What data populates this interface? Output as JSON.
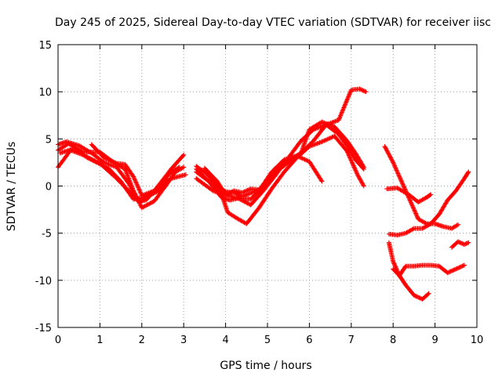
{
  "chart_data": {
    "type": "scatter",
    "title": "Day 245 of 2025, Sidereal Day-to-day VTEC variation (SDTVAR) for receiver iisc",
    "xlabel": "GPS time / hours",
    "ylabel": "SDTVAR / TECUs",
    "xlim": [
      0,
      10
    ],
    "ylim": [
      -15,
      15
    ],
    "xticks": [
      "0",
      "1",
      "2",
      "3",
      "4",
      "5",
      "6",
      "7",
      "8",
      "9",
      "10"
    ],
    "yticks": [
      "15",
      "10",
      "5",
      "0",
      "-5",
      "-10",
      "-15"
    ],
    "grid": true,
    "marker": "+",
    "colors": {
      "series": "#ff0000",
      "grid": "#a0a0a0",
      "frame": "#000000"
    },
    "series": [
      {
        "points": [
          [
            0,
            2
          ],
          [
            0.3,
            3.8
          ],
          [
            0.6,
            3.3
          ],
          [
            1.0,
            2.4
          ],
          [
            1.4,
            0.8
          ],
          [
            1.75,
            -0.8
          ],
          [
            2.0,
            -1.6
          ],
          [
            2.3,
            -0.5
          ],
          [
            2.7,
            1.8
          ],
          [
            3.0,
            3.3
          ]
        ]
      },
      {
        "points": [
          [
            0,
            4.4
          ],
          [
            0.2,
            4.7
          ],
          [
            0.5,
            4.3
          ],
          [
            0.8,
            3.5
          ],
          [
            1.1,
            2.5
          ],
          [
            1.4,
            2.0
          ],
          [
            1.7,
            0.2
          ],
          [
            1.9,
            -1.6
          ],
          [
            2.1,
            -1.5
          ],
          [
            2.4,
            0.0
          ],
          [
            2.7,
            1.5
          ],
          [
            2.9,
            2.0
          ]
        ]
      },
      {
        "points": [
          [
            0,
            3.8
          ],
          [
            0.25,
            4.5
          ],
          [
            0.6,
            3.6
          ],
          [
            1.0,
            3.6
          ],
          [
            1.3,
            2.6
          ],
          [
            1.6,
            1.8
          ],
          [
            1.8,
            -0.5
          ],
          [
            2.0,
            -2.3
          ],
          [
            2.3,
            -1.6
          ],
          [
            2.6,
            0.2
          ],
          [
            2.8,
            1.5
          ],
          [
            3.0,
            2.0
          ]
        ]
      },
      {
        "points": [
          [
            0.05,
            3.5
          ],
          [
            0.4,
            4.0
          ],
          [
            0.7,
            3.0
          ],
          [
            1.2,
            1.9
          ],
          [
            1.5,
            0.5
          ],
          [
            1.8,
            -1.4
          ],
          [
            2.1,
            -1.2
          ],
          [
            2.4,
            -0.5
          ],
          [
            2.7,
            0.8
          ],
          [
            3.05,
            1.2
          ]
        ]
      },
      {
        "points": [
          [
            0.8,
            4.4
          ],
          [
            1.1,
            3.0
          ],
          [
            1.4,
            2.4
          ],
          [
            1.6,
            2.3
          ],
          [
            1.8,
            1.0
          ],
          [
            2.0,
            -1.0
          ],
          [
            2.3,
            -0.5
          ],
          [
            2.6,
            0.8
          ]
        ]
      },
      {
        "points": [
          [
            3.3,
            1.8
          ],
          [
            3.6,
            0.5
          ],
          [
            3.9,
            -0.8
          ],
          [
            4.05,
            -2.8
          ],
          [
            4.3,
            -3.5
          ],
          [
            4.5,
            -4.0
          ],
          [
            4.8,
            -2.3
          ],
          [
            5.1,
            -0.3
          ],
          [
            5.4,
            1.5
          ],
          [
            5.7,
            3.0
          ],
          [
            6.0,
            4.2
          ],
          [
            6.3,
            4.7
          ],
          [
            6.6,
            5.3
          ],
          [
            6.9,
            3.7
          ],
          [
            7.15,
            1.2
          ],
          [
            7.3,
            0.0
          ]
        ]
      },
      {
        "points": [
          [
            3.3,
            0.8
          ],
          [
            3.7,
            -0.5
          ],
          [
            4.0,
            -1.0
          ],
          [
            4.2,
            -0.5
          ],
          [
            4.4,
            -0.7
          ],
          [
            4.6,
            -0.3
          ],
          [
            4.8,
            -0.4
          ],
          [
            5.0,
            0.2
          ],
          [
            5.2,
            1.5
          ],
          [
            5.5,
            2.5
          ],
          [
            5.8,
            3.5
          ],
          [
            6.1,
            4.8
          ],
          [
            6.4,
            6.5
          ],
          [
            6.7,
            5.5
          ],
          [
            6.9,
            4.3
          ],
          [
            7.1,
            2.8
          ],
          [
            7.3,
            1.8
          ]
        ]
      },
      {
        "points": [
          [
            3.3,
            2.1
          ],
          [
            3.55,
            1.3
          ],
          [
            3.8,
            0.0
          ],
          [
            4.0,
            -0.6
          ],
          [
            4.2,
            -0.7
          ],
          [
            4.4,
            -1.1
          ],
          [
            4.8,
            -0.4
          ],
          [
            5.1,
            1.2
          ],
          [
            5.5,
            2.7
          ],
          [
            5.8,
            3.5
          ],
          [
            6.0,
            6.0
          ],
          [
            6.3,
            6.8
          ],
          [
            6.6,
            6.3
          ],
          [
            6.9,
            4.8
          ],
          [
            7.1,
            3.5
          ],
          [
            7.3,
            2.0
          ]
        ]
      },
      {
        "points": [
          [
            3.5,
            1.9
          ],
          [
            3.8,
            0.5
          ],
          [
            4.0,
            -0.9
          ],
          [
            4.2,
            -1.2
          ],
          [
            4.6,
            -1.4
          ],
          [
            4.8,
            -0.5
          ],
          [
            5.1,
            1.5
          ],
          [
            5.4,
            2.8
          ],
          [
            5.7,
            3.2
          ],
          [
            6.0,
            2.6
          ],
          [
            6.3,
            0.5
          ]
        ]
      },
      {
        "points": [
          [
            3.3,
            1.5
          ],
          [
            3.6,
            0.5
          ],
          [
            3.9,
            -1.2
          ],
          [
            4.1,
            -1.5
          ],
          [
            4.3,
            -1.3
          ],
          [
            4.6,
            -2.0
          ],
          [
            4.9,
            -0.5
          ],
          [
            5.2,
            1.2
          ],
          [
            5.5,
            3.0
          ],
          [
            5.8,
            4.8
          ],
          [
            6.1,
            6.0
          ],
          [
            6.4,
            6.5
          ],
          [
            6.7,
            7.0
          ],
          [
            7.0,
            10.2
          ],
          [
            7.2,
            10.3
          ],
          [
            7.35,
            10.0
          ]
        ]
      },
      {
        "points": [
          [
            7.8,
            4.2
          ],
          [
            8.0,
            2.5
          ],
          [
            8.2,
            0.5
          ],
          [
            8.4,
            -1.5
          ],
          [
            8.6,
            -3.5
          ],
          [
            8.8,
            -4.0
          ],
          [
            9.0,
            -4.0
          ],
          [
            9.2,
            -4.3
          ],
          [
            9.4,
            -4.5
          ],
          [
            9.55,
            -4.1
          ]
        ]
      },
      {
        "points": [
          [
            7.85,
            -0.3
          ],
          [
            8.1,
            -0.2
          ],
          [
            8.4,
            -1.0
          ],
          [
            8.6,
            -1.7
          ],
          [
            8.8,
            -1.2
          ],
          [
            8.9,
            -0.9
          ]
        ]
      },
      {
        "points": [
          [
            7.9,
            -5.1
          ],
          [
            8.1,
            -5.2
          ],
          [
            8.3,
            -5.0
          ],
          [
            8.5,
            -4.5
          ],
          [
            8.7,
            -4.5
          ],
          [
            8.9,
            -4.0
          ],
          [
            9.1,
            -3.0
          ],
          [
            9.3,
            -1.5
          ],
          [
            9.5,
            -0.5
          ],
          [
            9.7,
            0.8
          ],
          [
            9.8,
            1.5
          ]
        ]
      },
      {
        "points": [
          [
            7.9,
            -6.0
          ],
          [
            8.0,
            -8.0
          ],
          [
            8.15,
            -9.5
          ],
          [
            8.3,
            -8.5
          ],
          [
            8.5,
            -8.5
          ],
          [
            8.7,
            -8.4
          ],
          [
            8.9,
            -8.4
          ],
          [
            9.1,
            -8.5
          ],
          [
            9.3,
            -9.2
          ],
          [
            9.5,
            -8.8
          ],
          [
            9.7,
            -8.4
          ]
        ]
      },
      {
        "points": [
          [
            8.0,
            -8.8
          ],
          [
            8.15,
            -9.5
          ],
          [
            8.3,
            -10.5
          ],
          [
            8.5,
            -11.6
          ],
          [
            8.7,
            -12.0
          ],
          [
            8.85,
            -11.4
          ]
        ]
      },
      {
        "points": [
          [
            9.4,
            -6.5
          ],
          [
            9.55,
            -5.9
          ],
          [
            9.7,
            -6.2
          ],
          [
            9.8,
            -6.0
          ]
        ]
      }
    ]
  }
}
